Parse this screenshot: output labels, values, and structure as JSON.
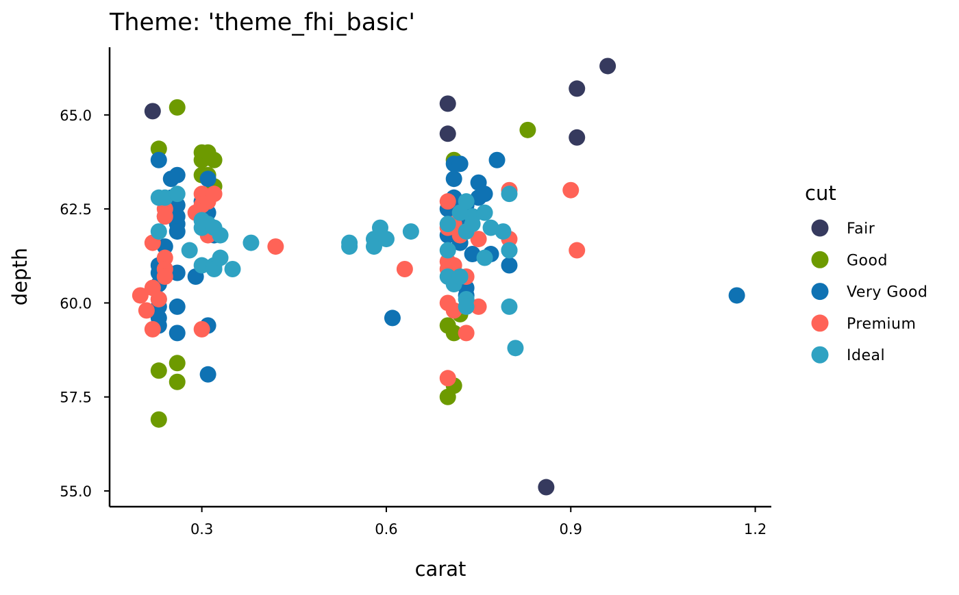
{
  "chart_data": {
    "type": "scatter",
    "title": "Theme: 'theme_fhi_basic'",
    "xlabel": "carat",
    "ylabel": "depth",
    "xlim": [
      0.15,
      1.225
    ],
    "ylim": [
      54.6,
      66.8
    ],
    "x_ticks": [
      0.3,
      0.6,
      0.9,
      1.2
    ],
    "x_tick_labels": [
      "0.3",
      "0.6",
      "0.9",
      "1.2"
    ],
    "y_ticks": [
      55.0,
      57.5,
      60.0,
      62.5,
      65.0
    ],
    "y_tick_labels": [
      "55.0",
      "57.5",
      "60.0",
      "62.5",
      "65.0"
    ],
    "grid": false,
    "legend": {
      "title": "cut",
      "placement": "right",
      "entries": [
        "Fair",
        "Good",
        "Very Good",
        "Premium",
        "Ideal"
      ]
    },
    "series": [
      {
        "name": "Fair",
        "color": "#363A5E",
        "points": [
          [
            0.22,
            65.1
          ],
          [
            0.7,
            65.3
          ],
          [
            0.7,
            64.5
          ],
          [
            0.86,
            55.1
          ],
          [
            0.91,
            65.7
          ],
          [
            0.91,
            64.4
          ],
          [
            0.96,
            66.3
          ]
        ]
      },
      {
        "name": "Good",
        "color": "#6D9A00",
        "points": [
          [
            0.23,
            56.9
          ],
          [
            0.23,
            58.2
          ],
          [
            0.23,
            64.1
          ],
          [
            0.26,
            65.2
          ],
          [
            0.26,
            58.4
          ],
          [
            0.26,
            57.9
          ],
          [
            0.3,
            64.0
          ],
          [
            0.3,
            63.8
          ],
          [
            0.3,
            63.4
          ],
          [
            0.31,
            64.0
          ],
          [
            0.31,
            63.4
          ],
          [
            0.32,
            63.8
          ],
          [
            0.32,
            63.1
          ],
          [
            0.7,
            57.5
          ],
          [
            0.7,
            59.4
          ],
          [
            0.71,
            57.8
          ],
          [
            0.71,
            59.2
          ],
          [
            0.71,
            63.8
          ],
          [
            0.72,
            59.7
          ],
          [
            0.83,
            64.6
          ]
        ]
      },
      {
        "name": "Very Good",
        "color": "#0F72B3",
        "points": [
          [
            0.23,
            63.8
          ],
          [
            0.23,
            61.0
          ],
          [
            0.23,
            60.8
          ],
          [
            0.23,
            60.5
          ],
          [
            0.23,
            60.1
          ],
          [
            0.23,
            59.9
          ],
          [
            0.23,
            59.6
          ],
          [
            0.23,
            59.4
          ],
          [
            0.24,
            62.3
          ],
          [
            0.24,
            61.5
          ],
          [
            0.24,
            60.9
          ],
          [
            0.25,
            63.3
          ],
          [
            0.25,
            62.8
          ],
          [
            0.26,
            63.4
          ],
          [
            0.26,
            62.6
          ],
          [
            0.26,
            62.3
          ],
          [
            0.26,
            62.1
          ],
          [
            0.26,
            61.9
          ],
          [
            0.26,
            60.8
          ],
          [
            0.26,
            59.9
          ],
          [
            0.26,
            59.2
          ],
          [
            0.29,
            60.7
          ],
          [
            0.3,
            62.7
          ],
          [
            0.3,
            62.2
          ],
          [
            0.31,
            63.3
          ],
          [
            0.31,
            62.4
          ],
          [
            0.31,
            59.4
          ],
          [
            0.31,
            58.1
          ],
          [
            0.32,
            61.8
          ],
          [
            0.61,
            59.6
          ],
          [
            0.7,
            62.5
          ],
          [
            0.7,
            61.8
          ],
          [
            0.71,
            63.7
          ],
          [
            0.71,
            63.3
          ],
          [
            0.71,
            62.8
          ],
          [
            0.72,
            63.7
          ],
          [
            0.72,
            62.4
          ],
          [
            0.72,
            61.6
          ],
          [
            0.73,
            62.6
          ],
          [
            0.73,
            62.2
          ],
          [
            0.73,
            60.4
          ],
          [
            0.73,
            60.2
          ],
          [
            0.74,
            62.3
          ],
          [
            0.74,
            61.3
          ],
          [
            0.75,
            63.2
          ],
          [
            0.75,
            62.8
          ],
          [
            0.76,
            62.9
          ],
          [
            0.77,
            61.3
          ],
          [
            0.78,
            63.8
          ],
          [
            0.8,
            61.4
          ],
          [
            0.8,
            61.0
          ],
          [
            1.17,
            60.2
          ]
        ]
      },
      {
        "name": "Premium",
        "color": "#FF6357",
        "points": [
          [
            0.2,
            60.2
          ],
          [
            0.21,
            59.8
          ],
          [
            0.22,
            61.6
          ],
          [
            0.22,
            60.4
          ],
          [
            0.22,
            59.3
          ],
          [
            0.23,
            60.1
          ],
          [
            0.24,
            62.5
          ],
          [
            0.24,
            62.3
          ],
          [
            0.24,
            61.2
          ],
          [
            0.24,
            60.9
          ],
          [
            0.24,
            60.7
          ],
          [
            0.29,
            62.4
          ],
          [
            0.3,
            62.9
          ],
          [
            0.3,
            62.6
          ],
          [
            0.3,
            59.3
          ],
          [
            0.31,
            62.7
          ],
          [
            0.31,
            61.8
          ],
          [
            0.32,
            62.9
          ],
          [
            0.42,
            61.5
          ],
          [
            0.63,
            60.9
          ],
          [
            0.7,
            62.7
          ],
          [
            0.7,
            62.0
          ],
          [
            0.7,
            61.1
          ],
          [
            0.7,
            60.9
          ],
          [
            0.7,
            60.0
          ],
          [
            0.7,
            58.0
          ],
          [
            0.71,
            62.1
          ],
          [
            0.71,
            61.0
          ],
          [
            0.71,
            59.8
          ],
          [
            0.72,
            61.8
          ],
          [
            0.73,
            60.7
          ],
          [
            0.73,
            59.2
          ],
          [
            0.75,
            61.7
          ],
          [
            0.75,
            59.9
          ],
          [
            0.8,
            63.0
          ],
          [
            0.8,
            61.7
          ],
          [
            0.9,
            63.0
          ],
          [
            0.91,
            61.4
          ]
        ]
      },
      {
        "name": "Ideal",
        "color": "#2FA2C2",
        "points": [
          [
            0.23,
            62.8
          ],
          [
            0.23,
            61.9
          ],
          [
            0.24,
            62.8
          ],
          [
            0.26,
            62.9
          ],
          [
            0.28,
            61.4
          ],
          [
            0.3,
            62.2
          ],
          [
            0.3,
            62.0
          ],
          [
            0.3,
            61.0
          ],
          [
            0.31,
            62.1
          ],
          [
            0.32,
            62.0
          ],
          [
            0.32,
            61.0
          ],
          [
            0.32,
            60.9
          ],
          [
            0.33,
            61.8
          ],
          [
            0.33,
            61.2
          ],
          [
            0.35,
            60.9
          ],
          [
            0.38,
            61.6
          ],
          [
            0.54,
            61.6
          ],
          [
            0.54,
            61.5
          ],
          [
            0.58,
            61.7
          ],
          [
            0.58,
            61.5
          ],
          [
            0.59,
            62.0
          ],
          [
            0.6,
            61.7
          ],
          [
            0.64,
            61.9
          ],
          [
            0.7,
            62.1
          ],
          [
            0.7,
            61.4
          ],
          [
            0.7,
            60.7
          ],
          [
            0.71,
            60.5
          ],
          [
            0.72,
            62.4
          ],
          [
            0.72,
            60.7
          ],
          [
            0.73,
            62.7
          ],
          [
            0.73,
            61.9
          ],
          [
            0.73,
            60.1
          ],
          [
            0.73,
            59.9
          ],
          [
            0.74,
            62.3
          ],
          [
            0.74,
            62.1
          ],
          [
            0.76,
            62.4
          ],
          [
            0.76,
            61.2
          ],
          [
            0.77,
            62.0
          ],
          [
            0.79,
            61.9
          ],
          [
            0.8,
            62.9
          ],
          [
            0.8,
            61.4
          ],
          [
            0.8,
            59.9
          ],
          [
            0.81,
            58.8
          ]
        ]
      }
    ]
  }
}
